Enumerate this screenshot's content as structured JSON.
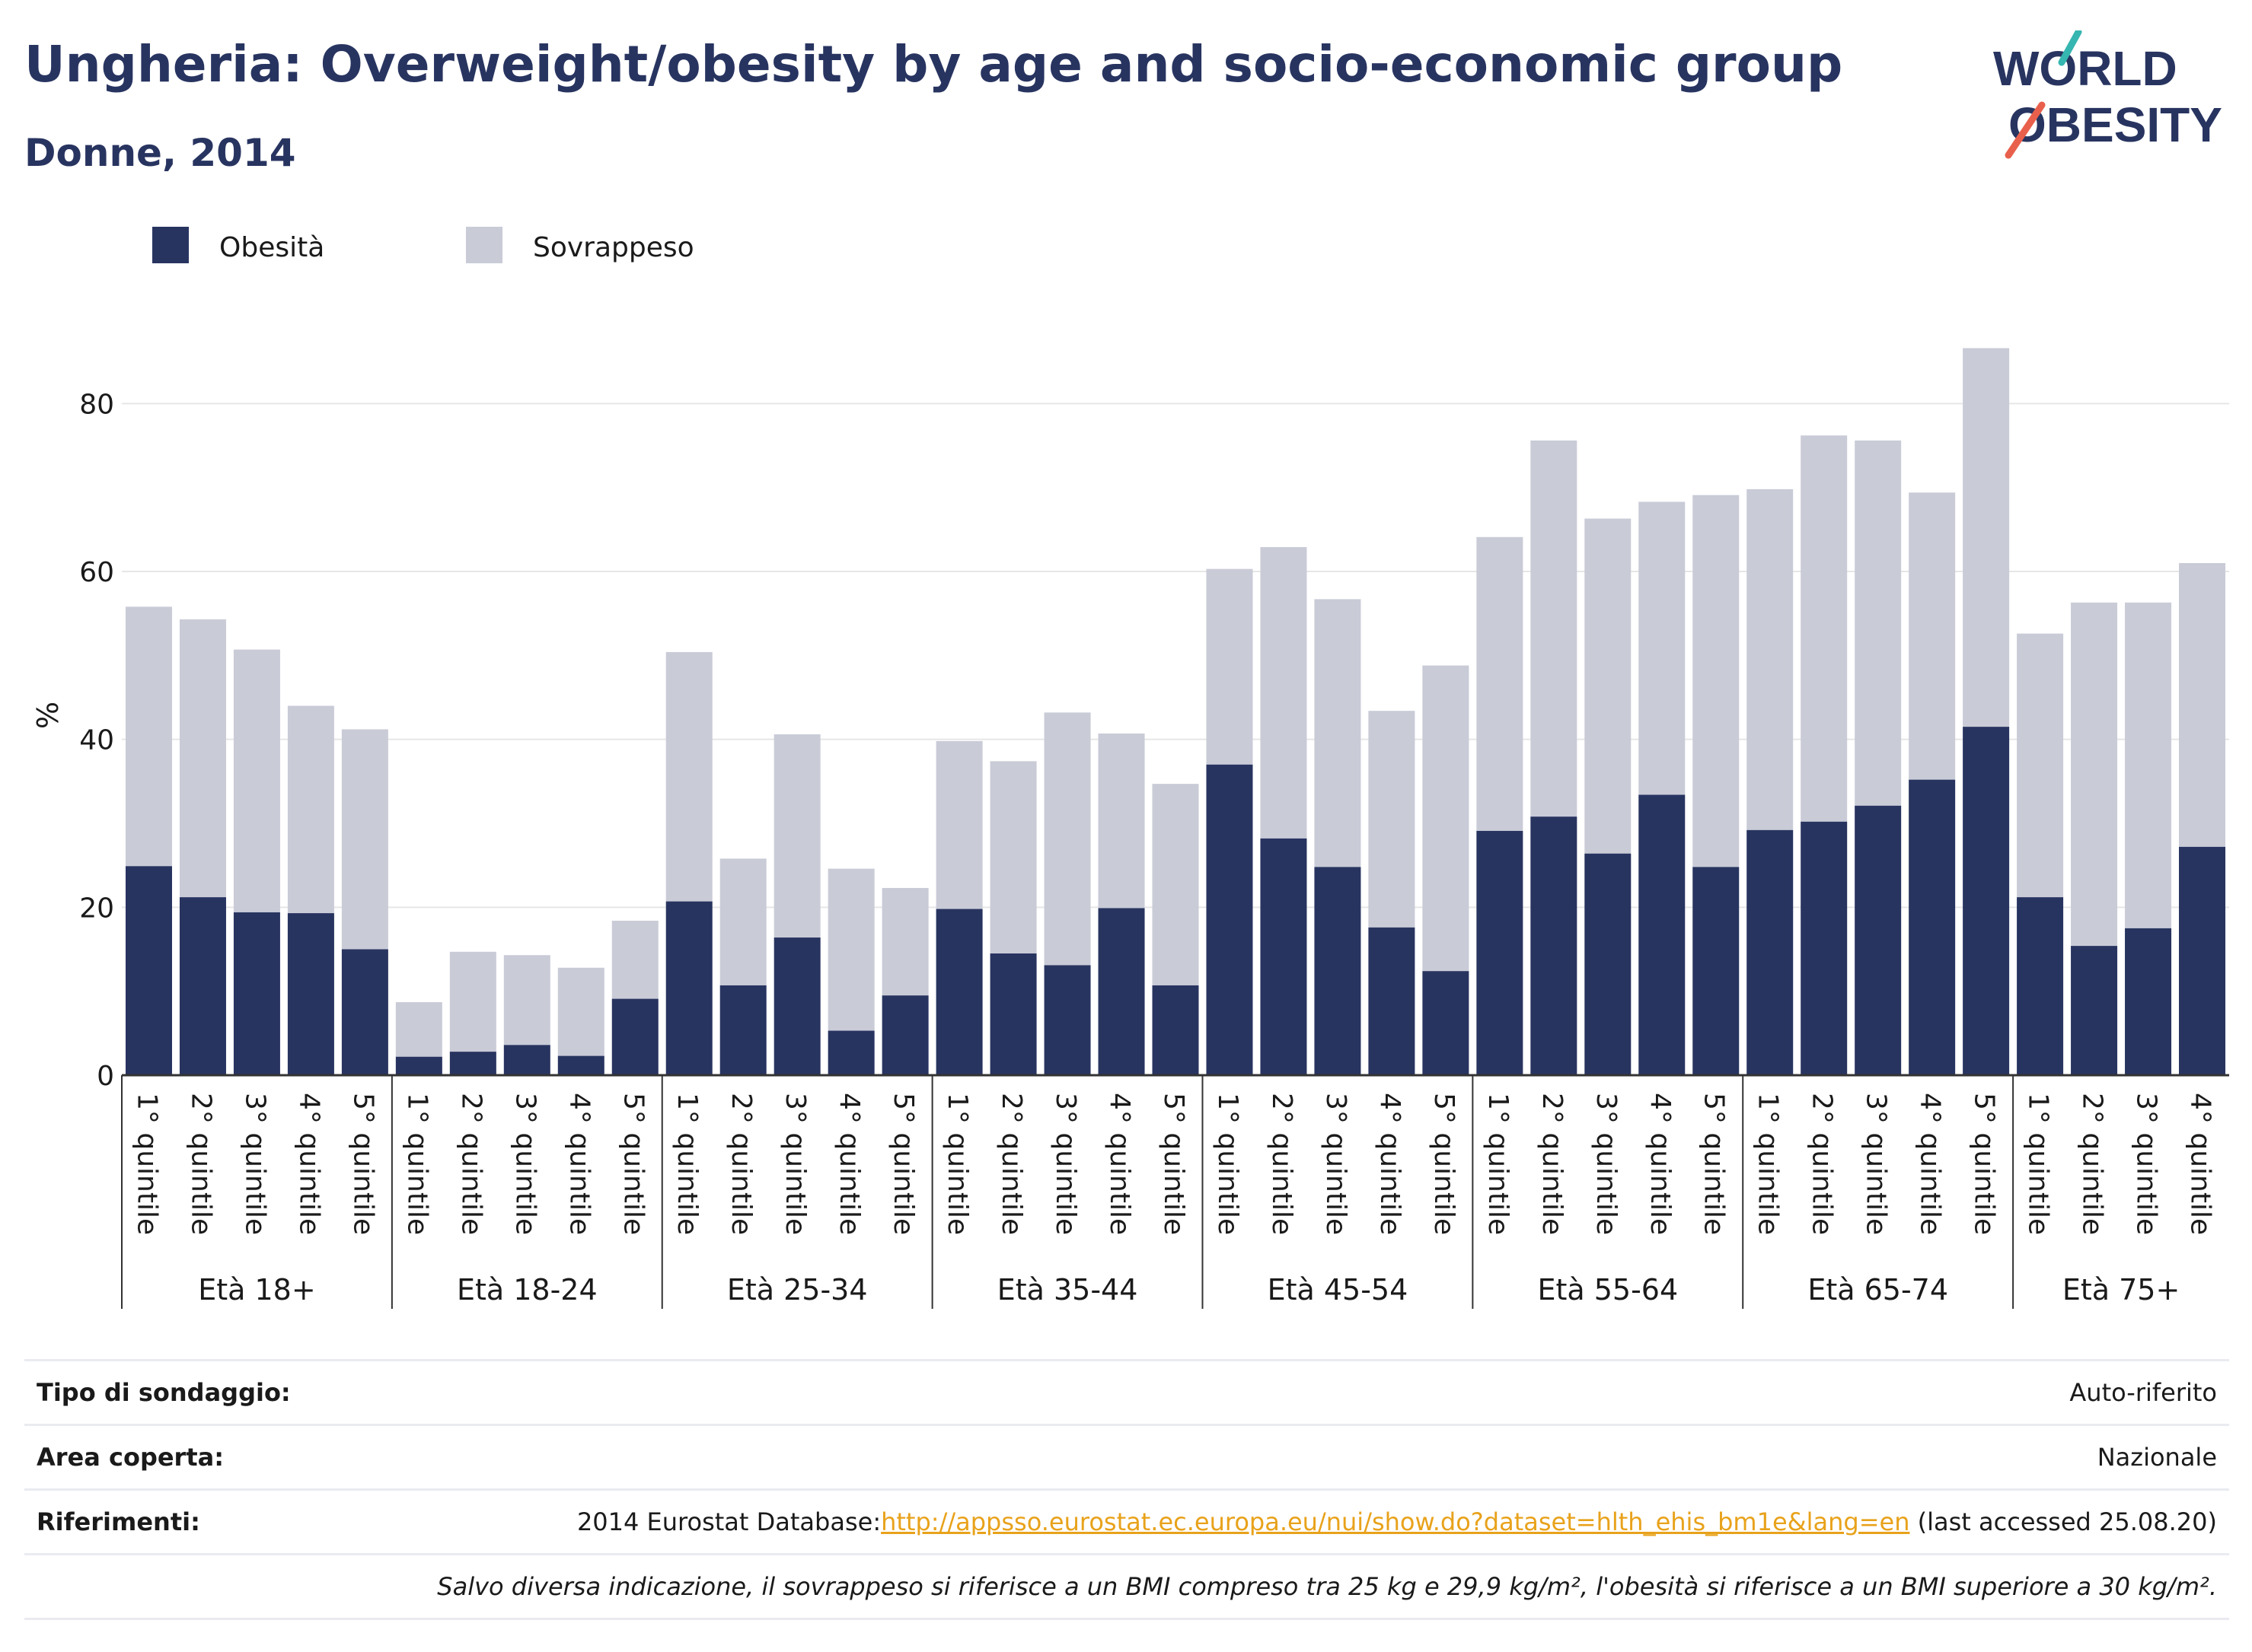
{
  "title": "Ungheria: Overweight/obesity by age and socio-economic group",
  "subtitle": "Donne, 2014",
  "logo": {
    "line1": "WORLD",
    "line2": "OBESITY"
  },
  "colors": {
    "obesity": "#283460",
    "overweight": "#c9cbd7",
    "title": "#283460",
    "grid": "#e6e6e6",
    "link": "#e8a21b",
    "logo_teal": "#36b6b0",
    "logo_coral": "#e8604c"
  },
  "chart_data": {
    "type": "bar",
    "stacked": true,
    "ylabel": "%",
    "ylim": [
      0,
      90
    ],
    "yticks": [
      0,
      20,
      40,
      60,
      80
    ],
    "grid": true,
    "legend_position": "top-left",
    "groups": [
      {
        "label": "Età 18+",
        "categories": [
          "1° quintile",
          "2° quintile",
          "3° quintile",
          "4° quintile",
          "5° quintile"
        ]
      },
      {
        "label": "Età 18-24",
        "categories": [
          "1° quintile",
          "2° quintile",
          "3° quintile",
          "4° quintile",
          "5° quintile"
        ]
      },
      {
        "label": "Età 25-34",
        "categories": [
          "1° quintile",
          "2° quintile",
          "3° quintile",
          "4° quintile",
          "5° quintile"
        ]
      },
      {
        "label": "Età 35-44",
        "categories": [
          "1° quintile",
          "2° quintile",
          "3° quintile",
          "4° quintile",
          "5° quintile"
        ]
      },
      {
        "label": "Età 45-54",
        "categories": [
          "1° quintile",
          "2° quintile",
          "3° quintile",
          "4° quintile",
          "5° quintile"
        ]
      },
      {
        "label": "Età 55-64",
        "categories": [
          "1° quintile",
          "2° quintile",
          "3° quintile",
          "4° quintile",
          "5° quintile"
        ]
      },
      {
        "label": "Età 65-74",
        "categories": [
          "1° quintile",
          "2° quintile",
          "3° quintile",
          "4° quintile",
          "5° quintile"
        ]
      },
      {
        "label": "Età 75+",
        "categories": [
          "1° quintile",
          "2° quintile",
          "3° quintile",
          "4° quintile"
        ]
      }
    ],
    "series": [
      {
        "name": "Obesità",
        "values": [
          24.9,
          21.2,
          19.4,
          19.3,
          15.0,
          2.2,
          2.8,
          3.6,
          2.3,
          9.1,
          20.7,
          10.7,
          16.4,
          5.3,
          9.5,
          19.8,
          14.5,
          13.1,
          19.9,
          10.7,
          37.0,
          28.2,
          24.8,
          17.6,
          12.4,
          29.1,
          30.8,
          26.4,
          33.4,
          24.8,
          29.2,
          30.2,
          32.1,
          35.2,
          41.5,
          21.2,
          15.4,
          17.5,
          27.2
        ]
      },
      {
        "name": "Sovrappeso",
        "values": [
          30.9,
          33.1,
          31.3,
          24.7,
          26.2,
          6.5,
          11.9,
          10.7,
          10.5,
          9.3,
          29.7,
          15.1,
          24.2,
          19.3,
          12.8,
          20.0,
          22.9,
          30.1,
          20.8,
          24.0,
          23.3,
          34.7,
          31.9,
          25.8,
          36.4,
          35.0,
          44.8,
          39.9,
          34.9,
          44.3,
          40.6,
          46.0,
          43.5,
          34.2,
          45.1,
          31.4,
          40.9,
          38.8,
          33.8
        ]
      }
    ]
  },
  "info": [
    {
      "label": "Tipo di sondaggio:",
      "value": "Auto-riferito"
    },
    {
      "label": "Area coperta:",
      "value": "Nazionale"
    },
    {
      "label": "Riferimenti:",
      "prefix": "2014 Eurostat Database:",
      "link": "http://appsso.eurostat.ec.europa.eu/nui/show.do?dataset=hlth_ehis_bm1e&lang=en",
      "suffix": " (last accessed 25.08.20)"
    },
    {
      "label": "",
      "value": "Salvo diversa indicazione, il sovrappeso si riferisce a un BMI compreso tra 25 kg e 29,9 kg/m², l'obesità si riferisce a un BMI superiore a 30 kg/m²."
    }
  ]
}
